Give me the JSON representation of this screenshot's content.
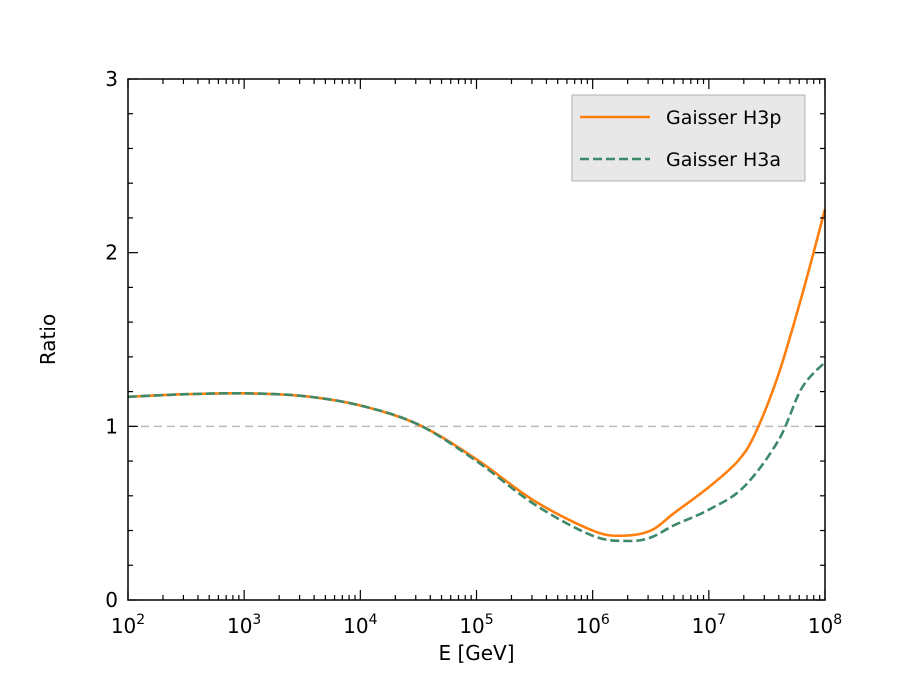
{
  "chart_data": {
    "type": "line",
    "xlabel": "E [GeV]",
    "ylabel": "Ratio",
    "xscale": "log",
    "xlim": [
      100,
      100000000
    ],
    "ylim": [
      0,
      3
    ],
    "grid": false,
    "legend_position": "top-right",
    "x_ticks": [
      {
        "value": 100,
        "base": "10",
        "exp": "2"
      },
      {
        "value": 1000,
        "base": "10",
        "exp": "3"
      },
      {
        "value": 10000,
        "base": "10",
        "exp": "4"
      },
      {
        "value": 100000,
        "base": "10",
        "exp": "5"
      },
      {
        "value": 1000000,
        "base": "10",
        "exp": "6"
      },
      {
        "value": 10000000,
        "base": "10",
        "exp": "7"
      },
      {
        "value": 100000000,
        "base": "10",
        "exp": "8"
      }
    ],
    "y_ticks": [
      {
        "value": 0,
        "label": "0"
      },
      {
        "value": 1,
        "label": "1"
      },
      {
        "value": 2,
        "label": "2"
      },
      {
        "value": 3,
        "label": "3"
      }
    ],
    "reference_line": {
      "y": 1,
      "color": "#bbbbbb",
      "style": "dashed"
    },
    "series": [
      {
        "name": "Gaisser H3p",
        "color": "#ff7f0e",
        "style": "solid",
        "x": [
          100,
          316,
          1000,
          3162,
          10000,
          31623,
          100000,
          316228,
          1000000,
          1778279,
          3162278,
          5011872,
          10000000,
          17782794,
          25118864,
          39810717,
          63095734,
          100000000
        ],
        "y": [
          1.17,
          1.185,
          1.19,
          1.175,
          1.12,
          1.01,
          0.81,
          0.57,
          0.4,
          0.37,
          0.4,
          0.5,
          0.65,
          0.8,
          0.96,
          1.3,
          1.75,
          2.25
        ]
      },
      {
        "name": "Gaisser H3a",
        "color": "#3d8a6a",
        "style": "dashed",
        "x": [
          100,
          316,
          1000,
          3162,
          10000,
          31623,
          100000,
          316228,
          1000000,
          2000000,
          3162278,
          5011872,
          10000000,
          19952623,
          39810717,
          63095734,
          100000000
        ],
        "y": [
          1.17,
          1.185,
          1.19,
          1.175,
          1.12,
          1.01,
          0.8,
          0.55,
          0.37,
          0.34,
          0.36,
          0.43,
          0.52,
          0.65,
          0.92,
          1.22,
          1.37
        ]
      }
    ]
  }
}
